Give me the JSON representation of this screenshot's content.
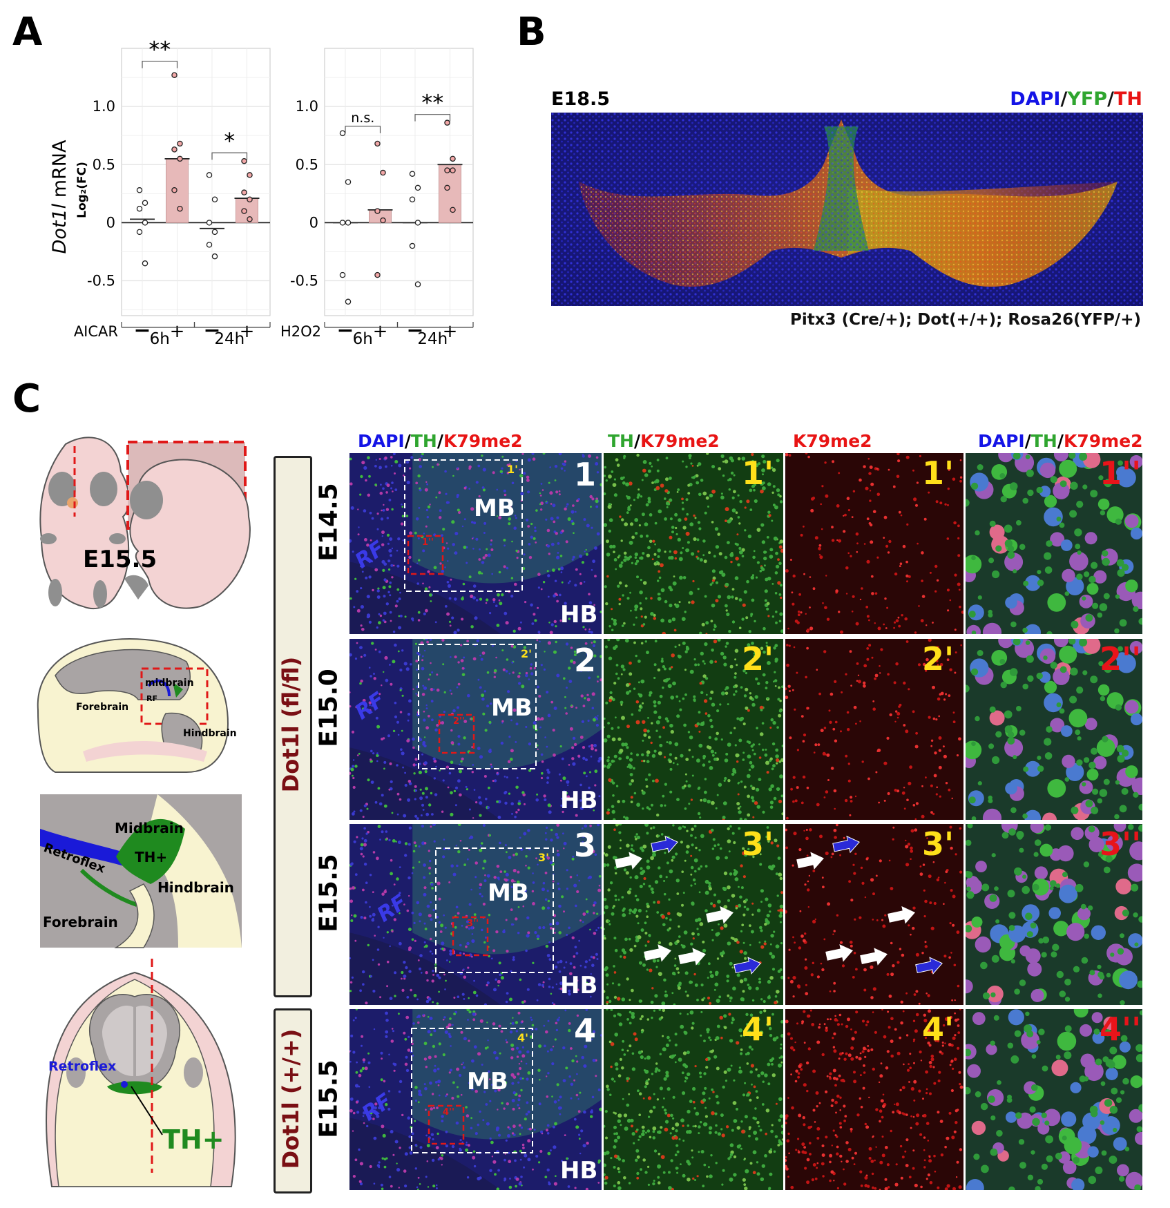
{
  "panels": {
    "a": "A",
    "b": "B",
    "c": "C"
  },
  "panel_a": {
    "ylabel_italic": "Dot1l",
    "ylabel_rest": " mRNA",
    "ylabel_sub": "Log₂(FC)",
    "yticks": [
      "1.0",
      "0.5",
      "0",
      "-0.5"
    ],
    "left": {
      "treatment": "AICAR",
      "signs": [
        "−",
        "+",
        "−",
        "+"
      ],
      "times": [
        "6h",
        "24h"
      ],
      "sig": [
        "**",
        "*"
      ]
    },
    "right": {
      "treatment": "H2O2",
      "signs": [
        "−",
        "+",
        "−",
        "+"
      ],
      "times": [
        "6h",
        "24h"
      ],
      "sig": [
        "n.s.",
        "**"
      ]
    }
  },
  "chart_data": [
    {
      "type": "bar",
      "treatment": "AICAR",
      "categories": [
        "6h −",
        "6h +",
        "24h −",
        "24h +"
      ],
      "means": [
        0.03,
        0.55,
        -0.05,
        0.21
      ],
      "points": [
        [
          0.28,
          0.17,
          0.12,
          0.0,
          -0.08,
          -0.35
        ],
        [
          1.27,
          0.68,
          0.63,
          0.55,
          0.28,
          0.12
        ],
        [
          0.41,
          0.2,
          0.0,
          -0.08,
          -0.19,
          -0.29
        ],
        [
          0.53,
          0.41,
          0.26,
          0.2,
          0.1,
          0.03
        ]
      ],
      "ylim": [
        -0.8,
        1.5
      ],
      "ylabel": "Dot1l mRNA Log2(FC)",
      "significance": [
        "**",
        "*"
      ]
    },
    {
      "type": "bar",
      "treatment": "H2O2",
      "categories": [
        "6h −",
        "6h +",
        "24h −",
        "24h +"
      ],
      "means": [
        0.0,
        0.11,
        0.0,
        0.5
      ],
      "points": [
        [
          0.77,
          0.35,
          0.0,
          0.0,
          -0.45,
          -0.68
        ],
        [
          0.68,
          0.43,
          0.1,
          0.02,
          -0.45
        ],
        [
          0.42,
          0.3,
          0.2,
          0.0,
          -0.2,
          -0.53
        ],
        [
          0.86,
          0.55,
          0.45,
          0.45,
          0.3,
          0.11
        ]
      ],
      "ylim": [
        -0.8,
        1.5
      ],
      "significance": [
        "n.s.",
        "**"
      ]
    }
  ],
  "panel_b": {
    "stage": "E18.5",
    "stain": {
      "dapi": "DAPI",
      "yfp": "YFP",
      "th": "TH",
      "sep": "/"
    },
    "genotype": "Pitx3 (Cre/+); Dot(+/+); Rosa26(YFP/+)"
  },
  "panel_c": {
    "schematic": {
      "stage": "E15.5",
      "midbrain": "midbrain",
      "forebrain": "Forebrain",
      "rf": "RF",
      "hindbrain": "Hindbrain",
      "midbrain2": "Midbrain",
      "th_plus": "TH+",
      "retroflex": "Retroflex",
      "hindbrain2": "Hindbrain",
      "forebrain2": "Forebrain",
      "retroflex2": "Retroflex",
      "th_plus2": "TH+"
    },
    "genotypes": [
      "Dot1l (fl/fl)",
      "Dot1l (+/+)"
    ],
    "stages": [
      "E14.5",
      "E15.0",
      "E15.5",
      "E15.5"
    ],
    "headers": {
      "col1": {
        "a": "DAPI",
        "b": "TH",
        "c": "K79me2"
      },
      "col2": {
        "a": "TH",
        "b": "K79me2"
      },
      "col3": "K79me2",
      "col4": {
        "a": "DAPI",
        "b": "TH",
        "c": "K79me2"
      },
      "sep": "/"
    },
    "rows": [
      {
        "n": "1",
        "p": "1'",
        "pp": "1''",
        "mb": "MB",
        "hb": "HB",
        "rf": "RF",
        "box": "1'",
        "sbox": "1''"
      },
      {
        "n": "2",
        "p": "2'",
        "pp": "2''",
        "mb": "MB",
        "hb": "HB",
        "rf": "RF",
        "box": "2'",
        "sbox": "2''"
      },
      {
        "n": "3",
        "p": "3'",
        "pp": "3''",
        "mb": "MB",
        "hb": "HB",
        "rf": "RF",
        "box": "3'",
        "sbox": "3''"
      },
      {
        "n": "4",
        "p": "4'",
        "pp": "4''",
        "mb": "MB",
        "hb": "HB",
        "rf": "RF",
        "box": "4'",
        "sbox": "4''"
      }
    ]
  }
}
